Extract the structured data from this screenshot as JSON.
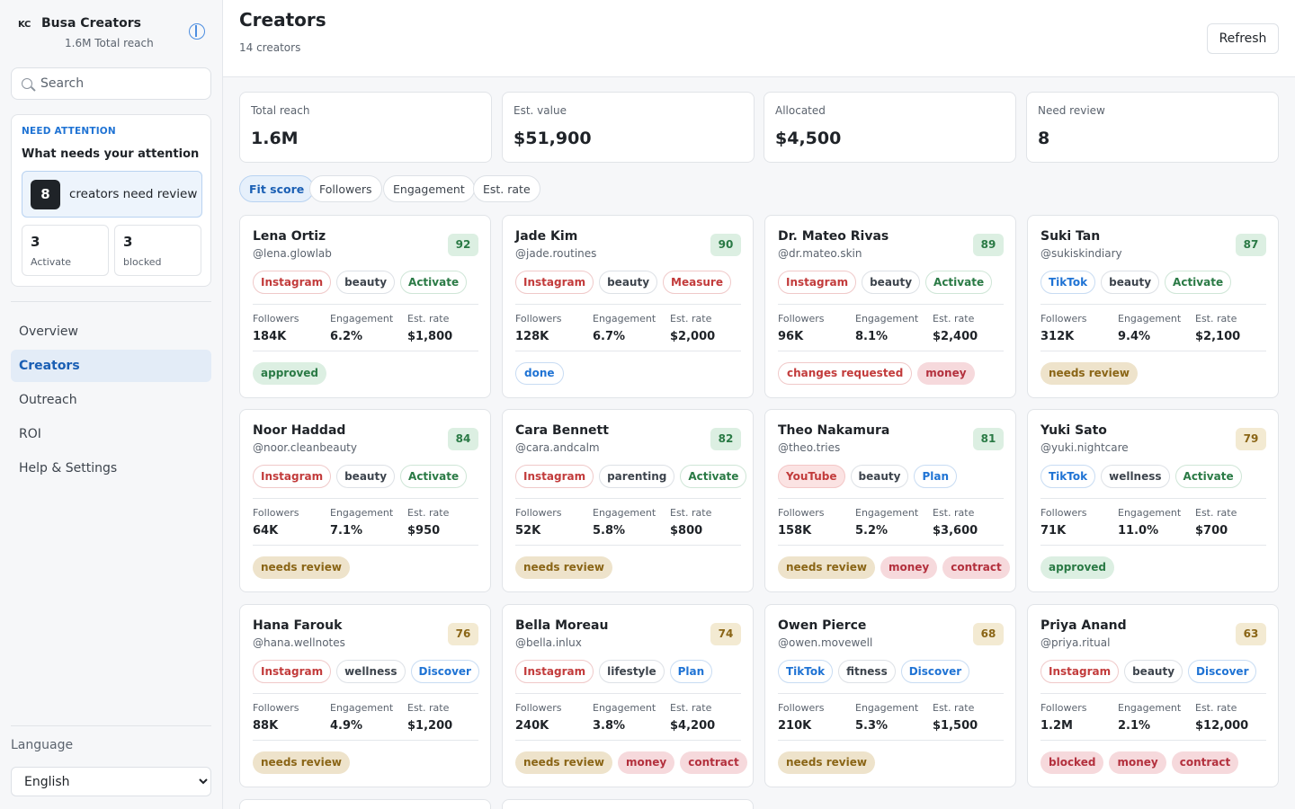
{
  "brand": {
    "logo": "KC",
    "name": "Busa Creators",
    "reach": "1.6M Total reach",
    "toggle_icon": "sidebar-toggle-icon"
  },
  "search": {
    "placeholder": "Search"
  },
  "attention": {
    "kicker": "NEED ATTENTION",
    "title": "What needs your attention",
    "review_count": "8",
    "review_text": "creators need review",
    "stats": [
      {
        "value": "3",
        "label": "Activate"
      },
      {
        "value": "3",
        "label": "blocked"
      }
    ]
  },
  "nav": [
    {
      "label": "Overview",
      "active": false
    },
    {
      "label": "Creators",
      "active": true
    },
    {
      "label": "Outreach",
      "active": false
    },
    {
      "label": "ROI",
      "active": false
    },
    {
      "label": "Help & Settings",
      "active": false
    }
  ],
  "language": {
    "label": "Language",
    "selected": "English",
    "options": [
      "English"
    ]
  },
  "header": {
    "title": "Creators",
    "subtitle": "14 creators",
    "refresh": "Refresh"
  },
  "kpis": [
    {
      "label": "Total reach",
      "value": "1.6M"
    },
    {
      "label": "Est. value",
      "value": "$51,900"
    },
    {
      "label": "Allocated",
      "value": "$4,500"
    },
    {
      "label": "Need review",
      "value": "8"
    }
  ],
  "sort_options": [
    {
      "label": "Fit score",
      "active": true
    },
    {
      "label": "Followers",
      "active": false
    },
    {
      "label": "Engagement",
      "active": false
    },
    {
      "label": "Est. rate",
      "active": false
    }
  ],
  "metric_labels": {
    "followers": "Followers",
    "engagement": "Engagement",
    "rate": "Est. rate"
  },
  "colors": {
    "accent": "#1a5fb4",
    "score_high_bg": "#dcefe2",
    "score_high_fg": "#2a7a45",
    "score_mid_bg": "#f3ead2",
    "score_mid_fg": "#8a6516"
  },
  "creators": [
    {
      "name": "Lena Ortiz",
      "handle": "@lena.glowlab",
      "score": "92",
      "platform": "Instagram",
      "niche": "beauty",
      "stage": "Activate",
      "followers": "184K",
      "engagement": "6.2%",
      "rate": "$1,800",
      "statuses": [
        "approved"
      ]
    },
    {
      "name": "Jade Kim",
      "handle": "@jade.routines",
      "score": "90",
      "platform": "Instagram",
      "niche": "beauty",
      "stage": "Measure",
      "followers": "128K",
      "engagement": "6.7%",
      "rate": "$2,000",
      "statuses": [
        "done"
      ]
    },
    {
      "name": "Dr. Mateo Rivas",
      "handle": "@dr.mateo.skin",
      "score": "89",
      "platform": "Instagram",
      "niche": "beauty",
      "stage": "Activate",
      "followers": "96K",
      "engagement": "8.1%",
      "rate": "$2,400",
      "statuses": [
        "changes requested",
        "money"
      ]
    },
    {
      "name": "Suki Tan",
      "handle": "@sukiskindiary",
      "score": "87",
      "platform": "TikTok",
      "niche": "beauty",
      "stage": "Activate",
      "followers": "312K",
      "engagement": "9.4%",
      "rate": "$2,100",
      "statuses": [
        "needs review"
      ]
    },
    {
      "name": "Noor Haddad",
      "handle": "@noor.cleanbeauty",
      "score": "84",
      "platform": "Instagram",
      "niche": "beauty",
      "stage": "Activate",
      "followers": "64K",
      "engagement": "7.1%",
      "rate": "$950",
      "statuses": [
        "needs review"
      ]
    },
    {
      "name": "Cara Bennett",
      "handle": "@cara.andcalm",
      "score": "82",
      "platform": "Instagram",
      "niche": "parenting",
      "stage": "Activate",
      "followers": "52K",
      "engagement": "5.8%",
      "rate": "$800",
      "statuses": [
        "needs review"
      ]
    },
    {
      "name": "Theo Nakamura",
      "handle": "@theo.tries",
      "score": "81",
      "platform": "YouTube",
      "niche": "beauty",
      "stage": "Plan",
      "followers": "158K",
      "engagement": "5.2%",
      "rate": "$3,600",
      "statuses": [
        "needs review",
        "money",
        "contract"
      ]
    },
    {
      "name": "Yuki Sato",
      "handle": "@yuki.nightcare",
      "score": "79",
      "platform": "TikTok",
      "niche": "wellness",
      "stage": "Activate",
      "followers": "71K",
      "engagement": "11.0%",
      "rate": "$700",
      "statuses": [
        "approved"
      ]
    },
    {
      "name": "Hana Farouk",
      "handle": "@hana.wellnotes",
      "score": "76",
      "platform": "Instagram",
      "niche": "wellness",
      "stage": "Discover",
      "followers": "88K",
      "engagement": "4.9%",
      "rate": "$1,200",
      "statuses": [
        "needs review"
      ]
    },
    {
      "name": "Bella Moreau",
      "handle": "@bella.inlux",
      "score": "74",
      "platform": "Instagram",
      "niche": "lifestyle",
      "stage": "Plan",
      "followers": "240K",
      "engagement": "3.8%",
      "rate": "$4,200",
      "statuses": [
        "needs review",
        "money",
        "contract"
      ]
    },
    {
      "name": "Owen Pierce",
      "handle": "@owen.movewell",
      "score": "68",
      "platform": "TikTok",
      "niche": "fitness",
      "stage": "Discover",
      "followers": "210K",
      "engagement": "5.3%",
      "rate": "$1,500",
      "statuses": [
        "needs review"
      ]
    },
    {
      "name": "Priya Anand",
      "handle": "@priya.ritual",
      "score": "63",
      "platform": "Instagram",
      "niche": "beauty",
      "stage": "Discover",
      "followers": "1.2M",
      "engagement": "2.1%",
      "rate": "$12,000",
      "statuses": [
        "blocked",
        "money",
        "contract"
      ]
    }
  ]
}
